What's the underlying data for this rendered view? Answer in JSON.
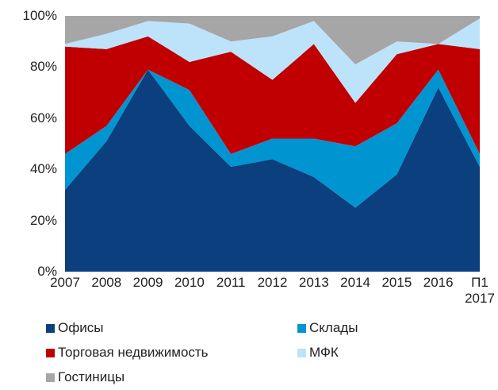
{
  "chart_data": {
    "type": "stacked_area",
    "categories": [
      "2007",
      "2008",
      "2009",
      "2010",
      "2011",
      "2012",
      "2013",
      "2014",
      "2015",
      "2016",
      "П1 2017"
    ],
    "series": [
      {
        "name": "Офисы",
        "color": "#0b3f7d",
        "values": [
          32,
          51,
          79,
          57,
          41,
          44,
          37,
          25,
          38,
          72,
          41
        ]
      },
      {
        "name": "Склады",
        "color": "#0094d1",
        "values": [
          14,
          6,
          0,
          14,
          5,
          8,
          15,
          24,
          20,
          7,
          5
        ]
      },
      {
        "name": "Торговая недвижимость",
        "color": "#c00000",
        "values": [
          42,
          30,
          13,
          11,
          40,
          23,
          37,
          17,
          27,
          10,
          41
        ]
      },
      {
        "name": "МФК",
        "color": "#bde3fb",
        "values": [
          1,
          6,
          6,
          15,
          4,
          17,
          9,
          15,
          5,
          0,
          12
        ]
      },
      {
        "name": "Гостиницы",
        "color": "#a6a6a6",
        "values": [
          11,
          7,
          2,
          3,
          10,
          8,
          2,
          19,
          10,
          11,
          1
        ]
      }
    ],
    "ylim": [
      0,
      100
    ],
    "yticks": [
      {
        "value": 0,
        "label": "0%"
      },
      {
        "value": 20,
        "label": "20%"
      },
      {
        "value": 40,
        "label": "40%"
      },
      {
        "value": 60,
        "label": "60%"
      },
      {
        "value": 80,
        "label": "80%"
      },
      {
        "value": 100,
        "label": "100%"
      }
    ],
    "grid": false,
    "legend": "bottom"
  }
}
